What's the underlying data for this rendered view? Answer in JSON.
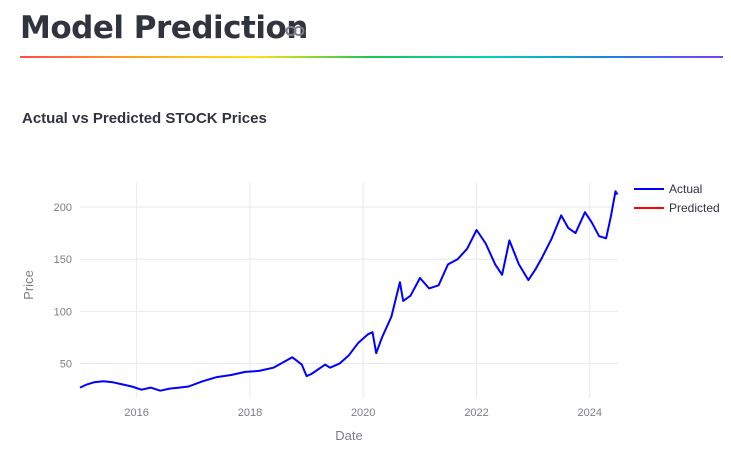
{
  "header": {
    "title": "Model Prediction",
    "link_icon": "link-icon",
    "divider_colors": [
      "#ff4b4b",
      "#ffa421",
      "#ffe312",
      "#21c354",
      "#00d4b1",
      "#1c83e1",
      "#803df5"
    ]
  },
  "chart_data": {
    "type": "line",
    "title": "Actual vs Predicted STOCK Prices",
    "xlabel": "Date",
    "ylabel": "Price",
    "xlim": [
      "2015-01-01",
      "2024-07-01"
    ],
    "ylim": [
      17,
      223
    ],
    "x_ticks": [
      "2016",
      "2018",
      "2020",
      "2022",
      "2024"
    ],
    "y_ticks": [
      50,
      100,
      150,
      200
    ],
    "grid": true,
    "legend_position": "top-right",
    "series": [
      {
        "name": "Actual",
        "color": "#0000ff",
        "points": [
          [
            "2015-01-01",
            27
          ],
          [
            "2015-02-15",
            30
          ],
          [
            "2015-04-01",
            32
          ],
          [
            "2015-06-01",
            33
          ],
          [
            "2015-08-01",
            32
          ],
          [
            "2015-10-01",
            30
          ],
          [
            "2015-12-01",
            28
          ],
          [
            "2016-02-01",
            25
          ],
          [
            "2016-04-01",
            27
          ],
          [
            "2016-06-01",
            24
          ],
          [
            "2016-08-01",
            26
          ],
          [
            "2016-10-01",
            27
          ],
          [
            "2016-12-01",
            28
          ],
          [
            "2017-03-01",
            33
          ],
          [
            "2017-06-01",
            37
          ],
          [
            "2017-09-01",
            39
          ],
          [
            "2017-12-01",
            42
          ],
          [
            "2018-03-01",
            43
          ],
          [
            "2018-06-01",
            46
          ],
          [
            "2018-10-01",
            56
          ],
          [
            "2018-12-01",
            49
          ],
          [
            "2019-01-01",
            38
          ],
          [
            "2019-02-01",
            40
          ],
          [
            "2019-05-01",
            49
          ],
          [
            "2019-06-01",
            46
          ],
          [
            "2019-08-01",
            50
          ],
          [
            "2019-10-01",
            58
          ],
          [
            "2019-12-01",
            70
          ],
          [
            "2020-02-01",
            78
          ],
          [
            "2020-03-01",
            80
          ],
          [
            "2020-03-25",
            60
          ],
          [
            "2020-05-01",
            75
          ],
          [
            "2020-07-01",
            95
          ],
          [
            "2020-08-25",
            128
          ],
          [
            "2020-09-15",
            110
          ],
          [
            "2020-11-01",
            115
          ],
          [
            "2021-01-01",
            132
          ],
          [
            "2021-03-01",
            122
          ],
          [
            "2021-05-01",
            125
          ],
          [
            "2021-07-01",
            145
          ],
          [
            "2021-09-01",
            150
          ],
          [
            "2021-11-01",
            160
          ],
          [
            "2022-01-01",
            178
          ],
          [
            "2022-03-01",
            165
          ],
          [
            "2022-05-01",
            145
          ],
          [
            "2022-06-15",
            135
          ],
          [
            "2022-08-01",
            168
          ],
          [
            "2022-10-01",
            145
          ],
          [
            "2022-12-01",
            130
          ],
          [
            "2023-01-15",
            140
          ],
          [
            "2023-03-01",
            152
          ],
          [
            "2023-05-01",
            170
          ],
          [
            "2023-07-01",
            192
          ],
          [
            "2023-08-15",
            180
          ],
          [
            "2023-10-01",
            175
          ],
          [
            "2023-12-01",
            195
          ],
          [
            "2024-01-15",
            185
          ],
          [
            "2024-03-01",
            172
          ],
          [
            "2024-04-15",
            170
          ],
          [
            "2024-05-15",
            190
          ],
          [
            "2024-06-15",
            215
          ],
          [
            "2024-06-28",
            212
          ]
        ]
      },
      {
        "name": "Predicted",
        "color": "#ff0000",
        "points": []
      }
    ]
  }
}
